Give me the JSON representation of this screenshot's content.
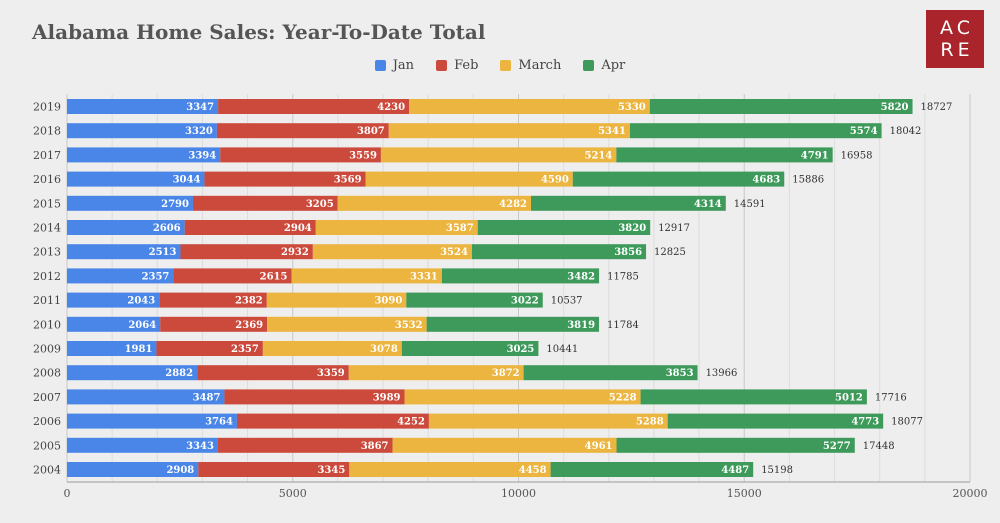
{
  "chart_data": {
    "type": "bar",
    "orientation": "horizontal",
    "stacked": true,
    "title": "Alabama Home Sales: Year-To-Date Total",
    "categories": [
      "2019",
      "2018",
      "2017",
      "2016",
      "2015",
      "2014",
      "2013",
      "2012",
      "2011",
      "2010",
      "2009",
      "2008",
      "2007",
      "2006",
      "2005",
      "2004"
    ],
    "series": [
      {
        "name": "Jan",
        "color": "#4a86e8",
        "values": [
          3347,
          3320,
          3394,
          3044,
          2790,
          2606,
          2513,
          2357,
          2043,
          2064,
          1981,
          2882,
          3487,
          3764,
          3343,
          2908
        ]
      },
      {
        "name": "Feb",
        "color": "#cc4a3c",
        "values": [
          4230,
          3807,
          3559,
          3569,
          3205,
          2904,
          2932,
          2615,
          2382,
          2369,
          2357,
          3359,
          3989,
          4252,
          3867,
          3345
        ]
      },
      {
        "name": "March",
        "color": "#ebb53f",
        "values": [
          5330,
          5341,
          5214,
          4590,
          4282,
          3587,
          3524,
          3331,
          3090,
          3532,
          3078,
          3872,
          5228,
          5288,
          4961,
          4458
        ]
      },
      {
        "name": "Apr",
        "color": "#3d9a5a",
        "values": [
          5820,
          5574,
          4791,
          4683,
          4314,
          3820,
          3856,
          3482,
          3022,
          3819,
          3025,
          3853,
          5012,
          4773,
          5277,
          4487
        ]
      }
    ],
    "totals": [
      18727,
      18042,
      16958,
      15886,
      14591,
      12917,
      12825,
      11785,
      10537,
      11784,
      10441,
      13966,
      17716,
      18077,
      17448,
      15198
    ],
    "xlim": [
      0,
      20000
    ],
    "xticks": [
      0,
      5000,
      10000,
      15000,
      20000
    ],
    "legend": "top",
    "grid": true
  },
  "logo": {
    "line1": "AC",
    "line2": "RE",
    "color": "#a9252b"
  }
}
